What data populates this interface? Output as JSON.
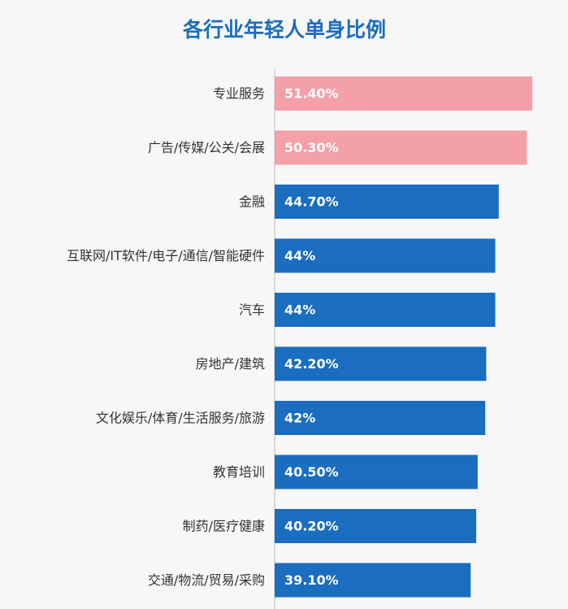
{
  "chart_data": {
    "type": "bar",
    "orientation": "horizontal",
    "title": "各行业年轻人单身比例",
    "categories": [
      "专业服务",
      "广告/传媒/公关/会展",
      "金融",
      "互联网/IT软件/电子/通信/智能硬件",
      "汽车",
      "房地产/建筑",
      "文化娱乐/体育/生活服务/旅游",
      "教育培训",
      "制药/医疗健康",
      "交通/物流/贸易/采购"
    ],
    "values": [
      51.4,
      50.3,
      44.7,
      44,
      44,
      42.2,
      42,
      40.5,
      40.2,
      39.1
    ],
    "value_labels": [
      "51.40%",
      "50.30%",
      "44.70%",
      "44%",
      "44%",
      "42.20%",
      "42%",
      "40.50%",
      "40.20%",
      "39.10%"
    ],
    "colors": [
      "#f4a0a9",
      "#f4a0a9",
      "#1a6dbf",
      "#1a6dbf",
      "#1a6dbf",
      "#1a6dbf",
      "#1a6dbf",
      "#1a6dbf",
      "#1a6dbf",
      "#1a6dbf"
    ]
  }
}
